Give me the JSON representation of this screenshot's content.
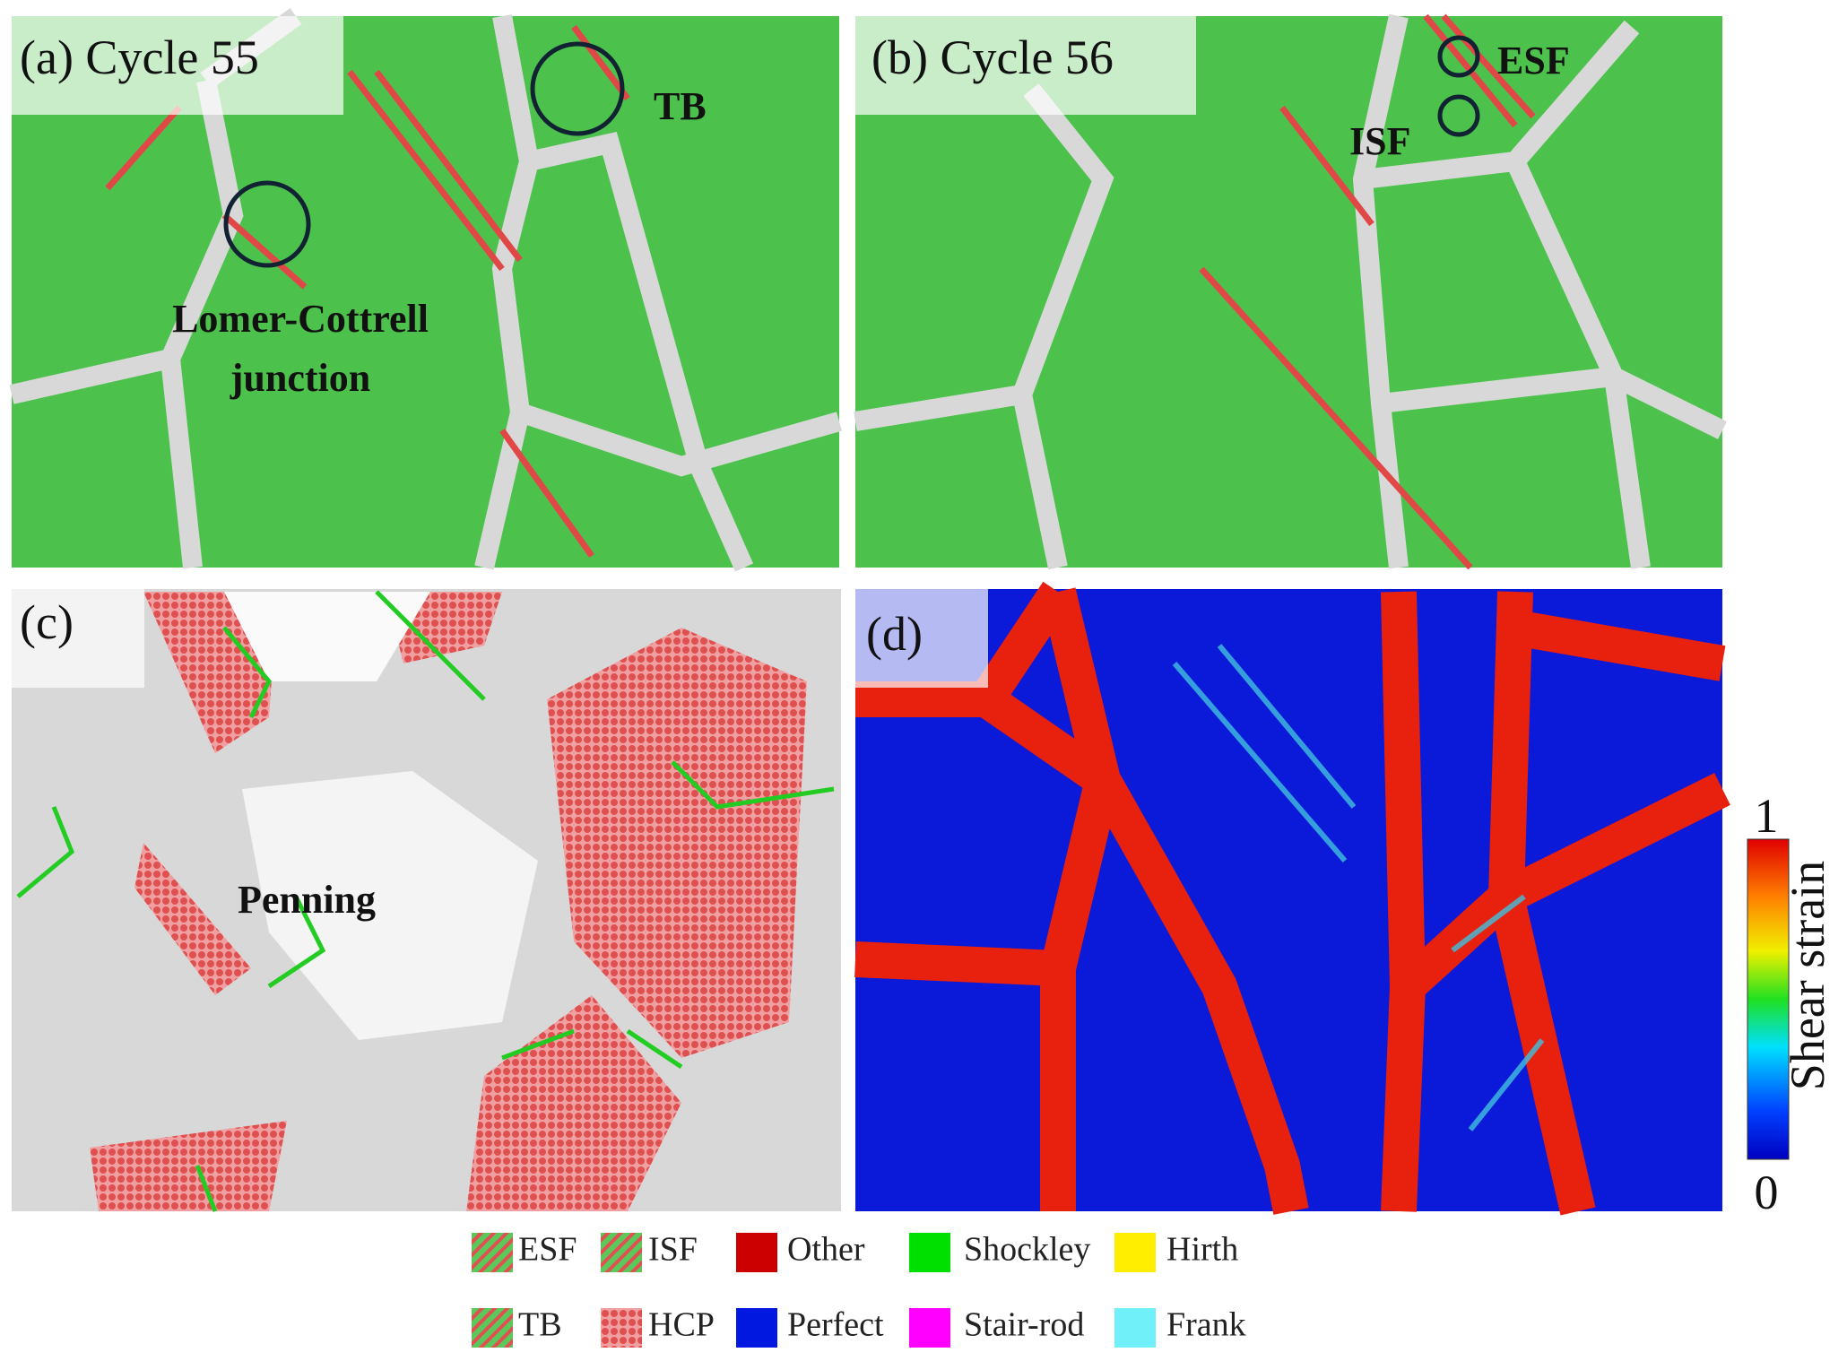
{
  "panels": [
    {
      "label": "(a) Cycle 55",
      "annotations": [
        "TB",
        "Lomer-Cottrell",
        "junction"
      ]
    },
    {
      "label": "(b) Cycle 56",
      "annotations": [
        "ESF",
        "ISF"
      ]
    },
    {
      "label": "(c)",
      "annotations": [
        "Penning"
      ]
    },
    {
      "label": "(d)",
      "annotations": []
    }
  ],
  "colorbar": {
    "title": "Shear strain",
    "max": 1,
    "min": 0
  },
  "legend": [
    {
      "name": "ESF",
      "color": "#5bc85b"
    },
    {
      "name": "ISF",
      "color": "#5bc85b"
    },
    {
      "name": "Other",
      "color": "#cc0000"
    },
    {
      "name": "Shockley",
      "color": "#00e000"
    },
    {
      "name": "Hirth",
      "color": "#ffee00"
    },
    {
      "name": "TB",
      "color": "#5bc85b"
    },
    {
      "name": "HCP",
      "color": "#e06060"
    },
    {
      "name": "Perfect",
      "color": "#0018e0"
    },
    {
      "name": "Stair-rod",
      "color": "#ff00ff"
    },
    {
      "name": "Frank",
      "color": "#70f0f8"
    }
  ]
}
